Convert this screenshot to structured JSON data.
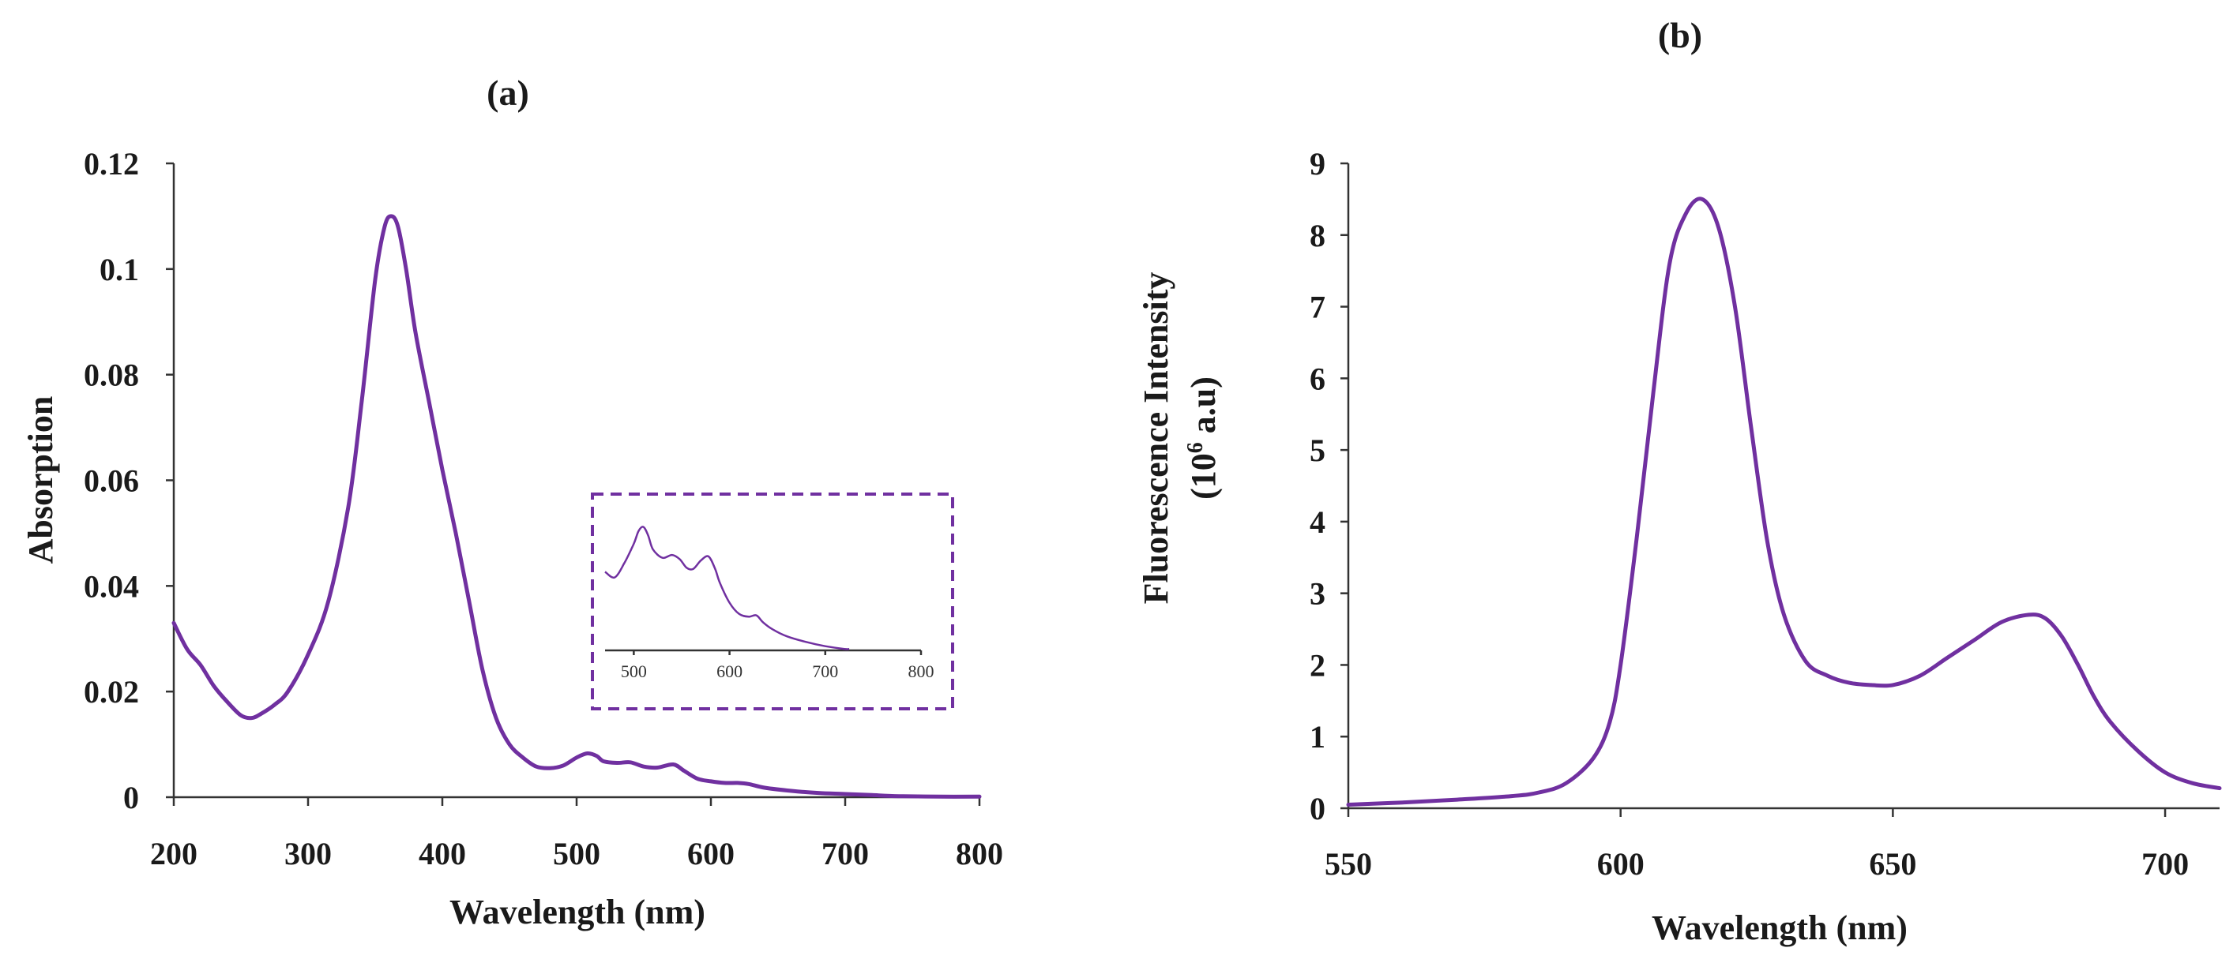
{
  "colors": {
    "series": "#7030a0",
    "axis": "#333333",
    "text": "#1a1a1a"
  },
  "chart_data": [
    {
      "id": "a",
      "type": "line",
      "title": "(a)",
      "xlabel": "Wavelength (nm)",
      "ylabel": "Absorption",
      "xlim": [
        200,
        800
      ],
      "ylim": [
        0,
        0.12
      ],
      "x_ticks": [
        200,
        300,
        400,
        500,
        600,
        700,
        800
      ],
      "y_ticks": [
        0,
        0.02,
        0.04,
        0.06,
        0.08,
        0.1,
        0.12
      ],
      "y_tick_labels": [
        "0",
        "0.02",
        "0.04",
        "0.06",
        "0.08",
        "0.1",
        "0.12"
      ],
      "series": [
        {
          "name": "Absorption",
          "x": [
            200,
            210,
            220,
            230,
            240,
            250,
            258,
            265,
            275,
            285,
            300,
            315,
            330,
            340,
            350,
            357,
            362,
            367,
            373,
            380,
            390,
            400,
            410,
            420,
            430,
            440,
            450,
            460,
            470,
            480,
            490,
            500,
            508,
            515,
            520,
            530,
            540,
            550,
            560,
            572,
            580,
            590,
            600,
            610,
            620,
            628,
            640,
            660,
            680,
            700,
            720,
            740,
            770,
            800
          ],
          "y": [
            0.033,
            0.028,
            0.025,
            0.021,
            0.018,
            0.0155,
            0.015,
            0.0158,
            0.0175,
            0.02,
            0.027,
            0.037,
            0.055,
            0.075,
            0.098,
            0.108,
            0.11,
            0.108,
            0.1,
            0.088,
            0.075,
            0.062,
            0.05,
            0.037,
            0.024,
            0.015,
            0.01,
            0.0075,
            0.0058,
            0.0055,
            0.006,
            0.0075,
            0.0083,
            0.0078,
            0.0068,
            0.0065,
            0.0066,
            0.0058,
            0.0056,
            0.0062,
            0.005,
            0.0035,
            0.003,
            0.0027,
            0.0027,
            0.0025,
            0.0018,
            0.0012,
            0.0008,
            0.0006,
            0.0004,
            0.0002,
            0.0001,
            0.0001
          ]
        }
      ],
      "inset": {
        "xlim": [
          470,
          800
        ],
        "x_ticks": [
          500,
          600,
          700,
          800
        ],
        "x": [
          470,
          480,
          490,
          500,
          505,
          510,
          515,
          520,
          530,
          540,
          548,
          555,
          562,
          570,
          578,
          585,
          590,
          600,
          610,
          620,
          628,
          635,
          645,
          660,
          680,
          700,
          720,
          725
        ],
        "y": [
          0.0056,
          0.0052,
          0.0062,
          0.0076,
          0.0085,
          0.0088,
          0.0082,
          0.0072,
          0.0066,
          0.0068,
          0.0065,
          0.0059,
          0.0058,
          0.0064,
          0.0067,
          0.0058,
          0.0048,
          0.0034,
          0.0026,
          0.0024,
          0.0025,
          0.002,
          0.0015,
          0.001,
          0.0006,
          0.0003,
          0.0001,
          0.0001
        ]
      }
    },
    {
      "id": "b",
      "type": "line",
      "title": "(b)",
      "xlabel": "Wavelength (nm)",
      "ylabel_line1": "Fluorescence Intensity",
      "ylabel_line2_prefix": "(10",
      "ylabel_line2_sup": "6",
      "ylabel_line2_suffix": " a.u)",
      "xlim": [
        550,
        710
      ],
      "ylim": [
        0,
        9
      ],
      "x_ticks": [
        550,
        600,
        650,
        700
      ],
      "y_ticks": [
        0,
        1,
        2,
        3,
        4,
        5,
        6,
        7,
        8,
        9
      ],
      "series": [
        {
          "name": "Fluorescence",
          "x": [
            550,
            560,
            570,
            580,
            585,
            590,
            595,
            598,
            600,
            603,
            606,
            609,
            612,
            615,
            618,
            621,
            624,
            627,
            630,
            634,
            638,
            642,
            646,
            650,
            655,
            660,
            665,
            670,
            675,
            678,
            681,
            684,
            687,
            690,
            695,
            700,
            705,
            710
          ],
          "y": [
            0.05,
            0.08,
            0.12,
            0.17,
            0.22,
            0.35,
            0.7,
            1.2,
            2.0,
            3.8,
            5.8,
            7.6,
            8.3,
            8.5,
            8.1,
            7.0,
            5.3,
            3.7,
            2.7,
            2.05,
            1.85,
            1.75,
            1.72,
            1.72,
            1.85,
            2.1,
            2.35,
            2.6,
            2.7,
            2.65,
            2.4,
            2.0,
            1.55,
            1.2,
            0.8,
            0.5,
            0.35,
            0.28
          ]
        }
      ]
    }
  ]
}
